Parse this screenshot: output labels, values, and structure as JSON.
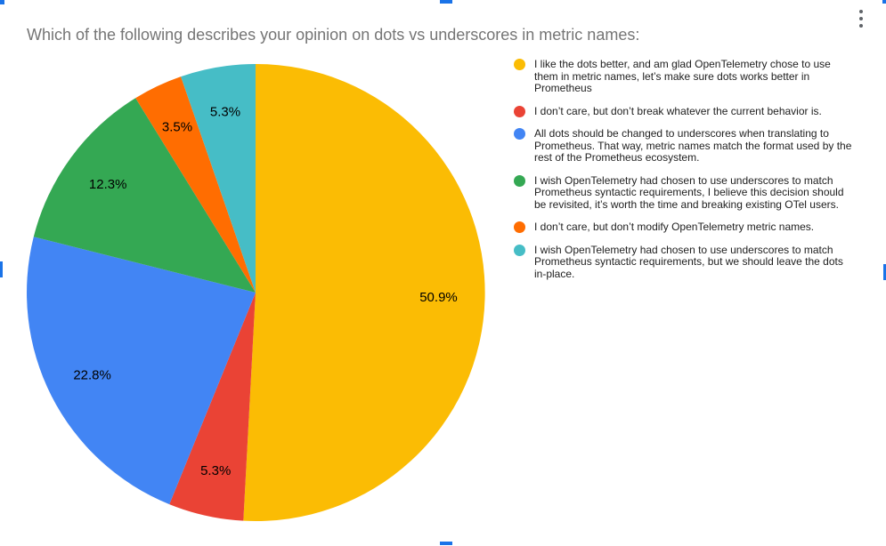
{
  "chart_data": {
    "type": "pie",
    "title": "Which of the following describes your opinion on dots vs underscores in metric names:",
    "legend_position": "right",
    "start_angle_deg": 0,
    "direction": "clockwise",
    "slices": [
      {
        "label": "I like the dots better, and am glad OpenTelemetry chose to use them in metric names, let’s make sure dots works better in Prometheus",
        "value": 50.9,
        "display": "50.9%",
        "color": "#FBBC04"
      },
      {
        "label": "I don’t care, but don’t break whatever the current behavior is.",
        "value": 5.3,
        "display": "5.3%",
        "color": "#EA4335"
      },
      {
        "label": "All dots should be changed to underscores when translating to Prometheus. That way, metric names match the format used by the rest of the Prometheus ecosystem.",
        "value": 22.8,
        "display": "22.8%",
        "color": "#4285F4"
      },
      {
        "label": "I wish OpenTelemetry had chosen to use underscores to match Prometheus syntactic requirements, I believe this decision should be revisited, it’s worth the time and breaking existing OTel users.",
        "value": 12.3,
        "display": "12.3%",
        "color": "#34A853"
      },
      {
        "label": "I don’t care, but don’t modify OpenTelemetry metric names.",
        "value": 3.5,
        "display": "3.5%",
        "color": "#FF6D01"
      },
      {
        "label": "I wish OpenTelemetry had chosen to use underscores to match Prometheus syntactic requirements, but we should leave the dots in-place.",
        "value": 5.3,
        "display": "5.3%",
        "color": "#46BDC6"
      }
    ]
  },
  "colors": {
    "selection_handle": "#1a73e8",
    "title_text": "#757575",
    "legend_text": "#212121",
    "slice_label_text": "#000000",
    "menu_icon": "#5f6368",
    "background": "#ffffff"
  }
}
